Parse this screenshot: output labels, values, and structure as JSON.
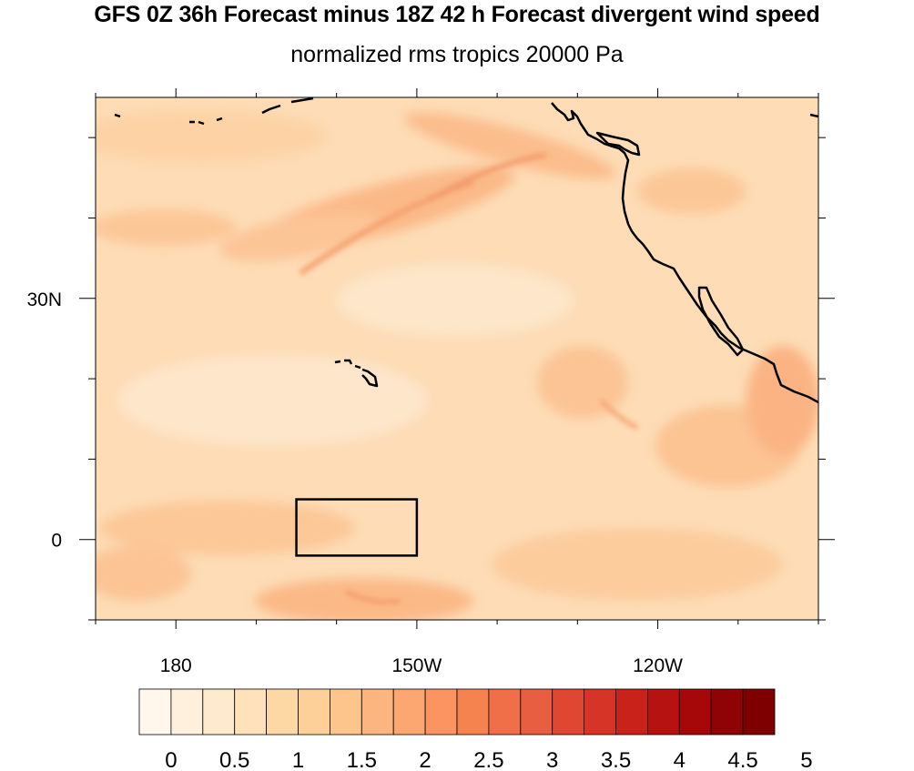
{
  "title": "GFS 0Z 36h Forecast minus 18Z 42 h Forecast divergent wind speed",
  "subtitle": "normalized rms tropics 20000 Pa",
  "map": {
    "lon_range": [
      -190,
      -100
    ],
    "lat_range": [
      -10,
      55
    ],
    "lon_ticks": [
      {
        "lon": -180,
        "label": "180"
      },
      {
        "lon": -150,
        "label": "150W"
      },
      {
        "lon": -120,
        "label": "120W"
      }
    ],
    "lat_ticks": [
      {
        "lat": 30,
        "label": "30N"
      },
      {
        "lat": 0,
        "label": "0"
      }
    ],
    "box": {
      "lon_min": -165,
      "lon_max": -150,
      "lat_min": -2,
      "lat_max": 5
    },
    "fill_palette": "white-orange-red"
  },
  "colorbar": {
    "levels": [
      "0",
      "0.5",
      "1",
      "1.5",
      "2",
      "2.5",
      "3",
      "3.5",
      "4",
      "4.5",
      "5"
    ],
    "colors": [
      "#fff7ec",
      "#fff0dd",
      "#feebce",
      "#fee2b9",
      "#fdd8a5",
      "#fdd09a",
      "#fdc48b",
      "#fcb57f",
      "#fca671",
      "#fb9460",
      "#f58350",
      "#f06f48",
      "#e85e40",
      "#e04733",
      "#d63426",
      "#c8221a",
      "#b61211",
      "#a60709",
      "#8f0205",
      "#7f0000"
    ]
  }
}
